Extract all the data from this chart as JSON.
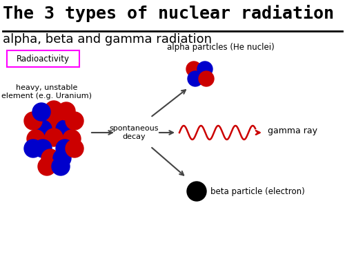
{
  "title": "The 3 types of nuclear radiation",
  "subtitle": "alpha, beta and gamma radiation",
  "title_fontsize": 18,
  "subtitle_fontsize": 13,
  "radioactivity_label": "Radioactivity",
  "heavy_element_text": "heavy, unstable\nelement (e.g. Uranium)",
  "spontaneous_text": "spontaneous\ndecay",
  "alpha_label": "alpha particles (He nuclei)",
  "gamma_label": "gamma ray",
  "beta_label": "beta particle (electron)",
  "background_color": "#ffffff",
  "title_color": "#000000",
  "subtitle_color": "#000000",
  "red_color": "#cc0000",
  "blue_color": "#0000cc",
  "black_color": "#000000",
  "pink_box_color": "#ff00ff",
  "gamma_wave_color": "#cc0000",
  "arrow_color": "#444444"
}
